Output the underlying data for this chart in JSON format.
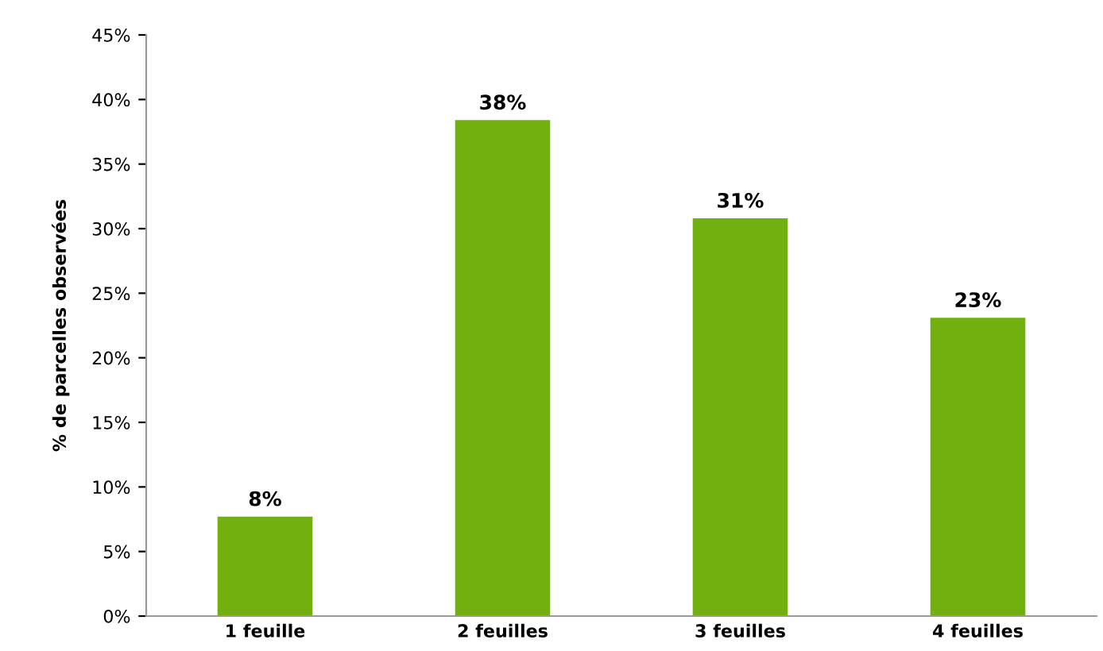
{
  "chart_data": {
    "type": "bar",
    "ylabel": "% de parcelles observées",
    "categories": [
      "1 feuille",
      "2 feuilles",
      "3 feuilles",
      "4 feuilles"
    ],
    "series": [
      {
        "color": "#72b010",
        "values": [
          7.7,
          38.4,
          30.8,
          23.1
        ],
        "value_labels": [
          "8%",
          "38%",
          "31%",
          "23%"
        ]
      }
    ],
    "ylim": [
      0,
      45
    ],
    "yticks": [
      {
        "value": 0,
        "label": "0%"
      },
      {
        "value": 5,
        "label": "5%"
      },
      {
        "value": 10,
        "label": "10%"
      },
      {
        "value": 15,
        "label": "15%"
      },
      {
        "value": 20,
        "label": "20%"
      },
      {
        "value": 25,
        "label": "25%"
      },
      {
        "value": 30,
        "label": "30%"
      },
      {
        "value": 35,
        "label": "35%"
      },
      {
        "value": 40,
        "label": "40%"
      },
      {
        "value": 45,
        "label": "45%"
      }
    ],
    "grid": false,
    "legend": false
  }
}
